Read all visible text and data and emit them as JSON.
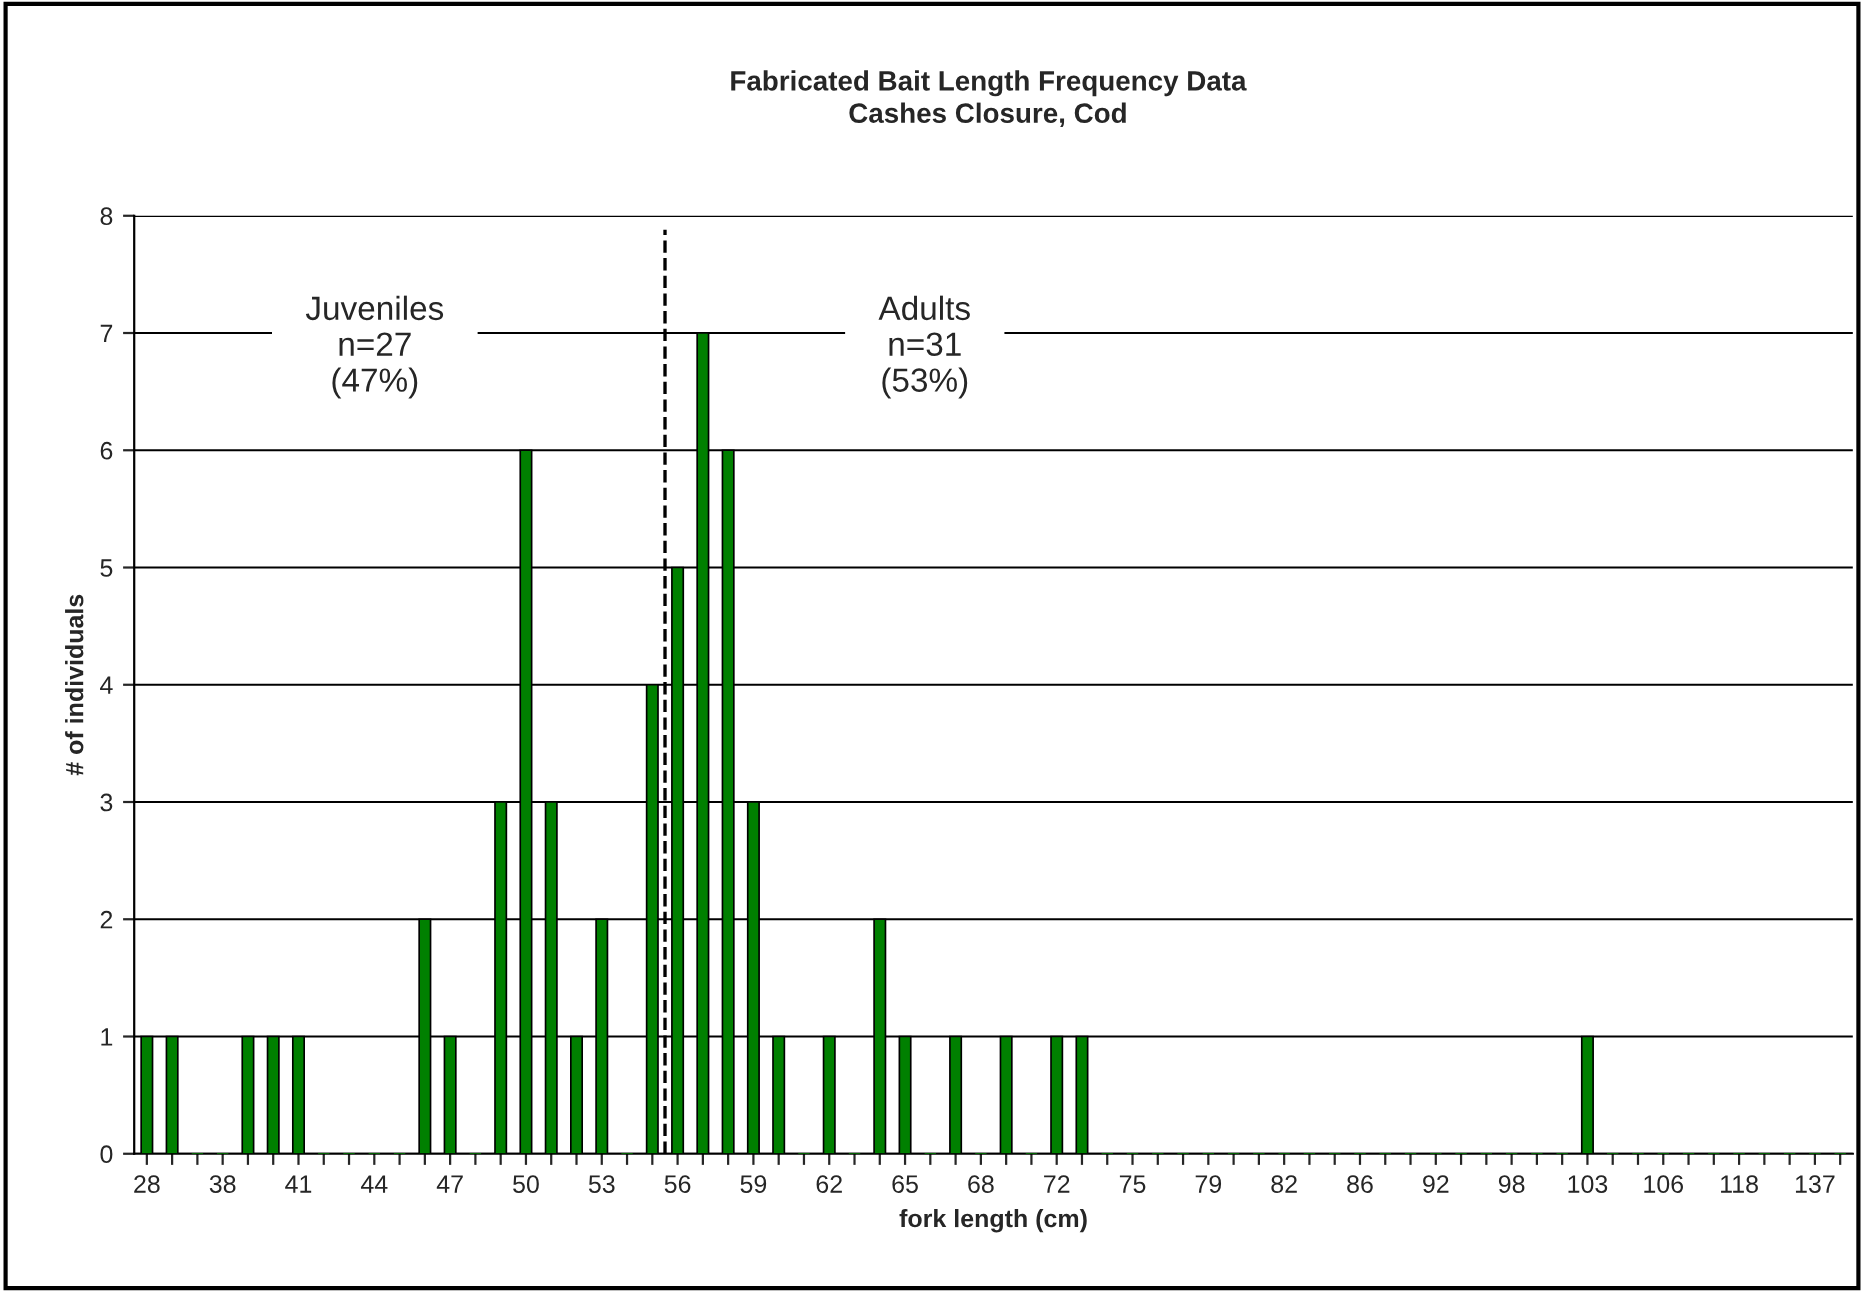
{
  "chart_data": {
    "type": "bar",
    "title": "Fabricated Bait Length Frequency Data",
    "subtitle": "Cashes Closure, Cod",
    "xlabel": "fork length (cm)",
    "ylabel": "# of individuals",
    "categories": [
      "28",
      null,
      null,
      "38",
      null,
      null,
      "41",
      null,
      null,
      "44",
      null,
      null,
      "47",
      null,
      null,
      "50",
      null,
      null,
      "53",
      null,
      null,
      "56",
      null,
      null,
      "59",
      null,
      null,
      "62",
      null,
      null,
      "65",
      null,
      null,
      "68",
      null,
      null,
      "72",
      null,
      null,
      "75",
      null,
      null,
      "79",
      null,
      null,
      "82",
      null,
      null,
      "86",
      null,
      null,
      "92",
      null,
      null,
      "98",
      null,
      null,
      "103",
      null,
      null,
      "106",
      null,
      null,
      "118",
      null,
      null,
      "137",
      null
    ],
    "values": [
      1,
      1,
      0,
      0,
      1,
      1,
      1,
      0,
      0,
      0,
      0,
      2,
      1,
      0,
      3,
      6,
      3,
      1,
      2,
      0,
      4,
      5,
      7,
      6,
      3,
      1,
      0,
      1,
      0,
      2,
      1,
      0,
      1,
      0,
      1,
      0,
      1,
      1,
      0,
      0,
      0,
      0,
      0,
      0,
      0,
      0,
      0,
      0,
      0,
      0,
      0,
      0,
      0,
      0,
      0,
      0,
      0,
      1,
      0,
      0,
      0,
      0,
      0,
      0,
      0,
      0,
      0,
      0
    ],
    "color": "#008000",
    "ylim": [
      0,
      8
    ],
    "yticks": [
      0,
      1,
      2,
      3,
      4,
      5,
      6,
      7,
      8
    ],
    "grid": "y",
    "annotations": [
      "Juveniles\nn=27\n(47%)",
      "Adults\nn=31\n(53%)"
    ]
  }
}
